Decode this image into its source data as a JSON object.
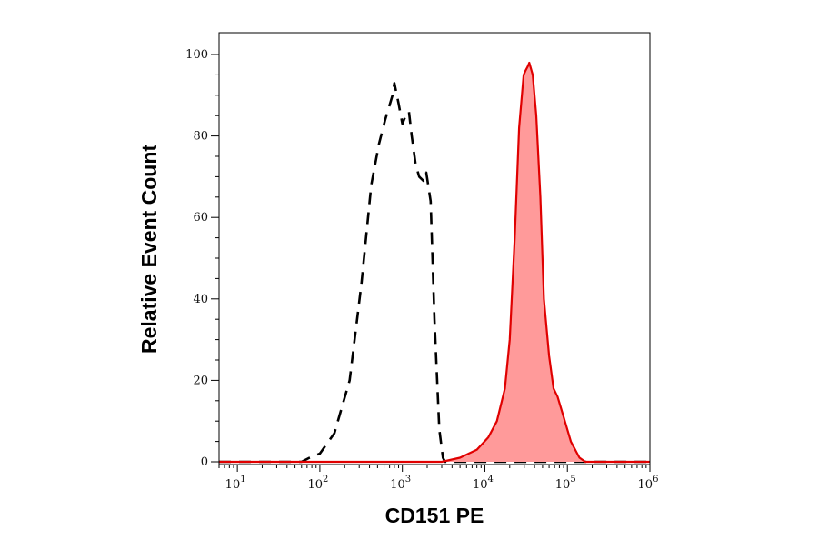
{
  "chart_data": {
    "type": "area",
    "xlabel": "CD151 PE",
    "ylabel": "Relative Event Count",
    "x_scale": "log",
    "xlim": [
      6,
      1000000
    ],
    "ylim": [
      0,
      100
    ],
    "x_ticks": [
      {
        "value": 10,
        "base": "10",
        "exp": "1"
      },
      {
        "value": 100,
        "base": "10",
        "exp": "2"
      },
      {
        "value": 1000,
        "base": "10",
        "exp": "3"
      },
      {
        "value": 10000,
        "base": "10",
        "exp": "4"
      },
      {
        "value": 100000,
        "base": "10",
        "exp": "5"
      },
      {
        "value": 1000000,
        "base": "10",
        "exp": "6"
      }
    ],
    "y_ticks": [
      {
        "value": 0,
        "label": "0"
      },
      {
        "value": 20,
        "label": "20"
      },
      {
        "value": 40,
        "label": "40"
      },
      {
        "value": 60,
        "label": "60"
      },
      {
        "value": 80,
        "label": "80"
      },
      {
        "value": 100,
        "label": "100"
      }
    ],
    "grid": false,
    "series": [
      {
        "style": "dashed",
        "color": "#000000",
        "fill": "none",
        "x": [
          6,
          60,
          75,
          100,
          150,
          230,
          320,
          420,
          520,
          620,
          760,
          800,
          900,
          1000,
          1100,
          1200,
          1300,
          1450,
          1600,
          1800,
          1950,
          2200,
          2450,
          2800,
          3100,
          3300,
          1000000
        ],
        "y": [
          0,
          0,
          1,
          2,
          7,
          20,
          44,
          68,
          78,
          84,
          90,
          93,
          88,
          83,
          85,
          86,
          80,
          73,
          70,
          69,
          71,
          64,
          35,
          8,
          1,
          0,
          0
        ]
      },
      {
        "style": "solid",
        "color": "#e00000",
        "fill": "#ff9a9a",
        "x": [
          6,
          3000,
          5000,
          8000,
          11000,
          14000,
          17500,
          20000,
          23000,
          26000,
          29500,
          31000,
          33000,
          34500,
          38000,
          42000,
          47000,
          52000,
          60000,
          68000,
          76000,
          90000,
          110000,
          140000,
          165000,
          1000000
        ],
        "y": [
          0,
          0,
          1,
          3,
          6,
          10,
          18,
          30,
          55,
          82,
          95,
          96,
          97,
          98,
          95,
          85,
          65,
          40,
          26,
          18,
          16,
          11,
          5,
          1,
          0,
          0
        ]
      }
    ]
  }
}
